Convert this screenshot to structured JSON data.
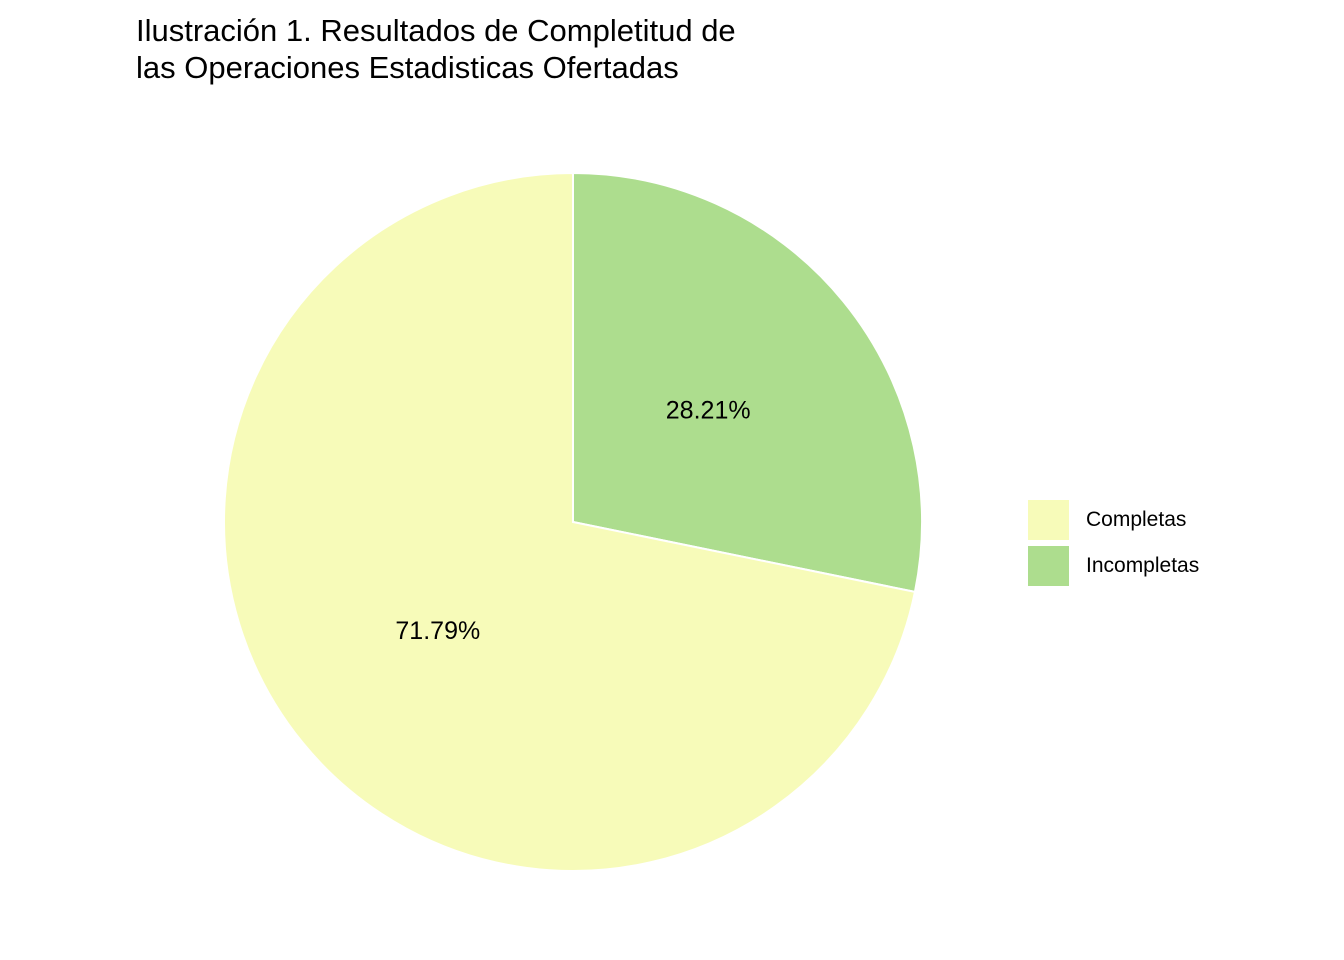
{
  "chart_data": {
    "type": "pie",
    "title_lines": [
      "Ilustración 1. Resultados de Completitud de",
      "las Operaciones Estadisticas Ofertadas"
    ],
    "categories": [
      "Completas",
      "Incompletas"
    ],
    "values": [
      71.79,
      28.21
    ],
    "value_labels": [
      "71.79%",
      "28.21%"
    ],
    "colors": [
      "#F7FBB9",
      "#ADDD8E"
    ],
    "legend_position": "right"
  }
}
